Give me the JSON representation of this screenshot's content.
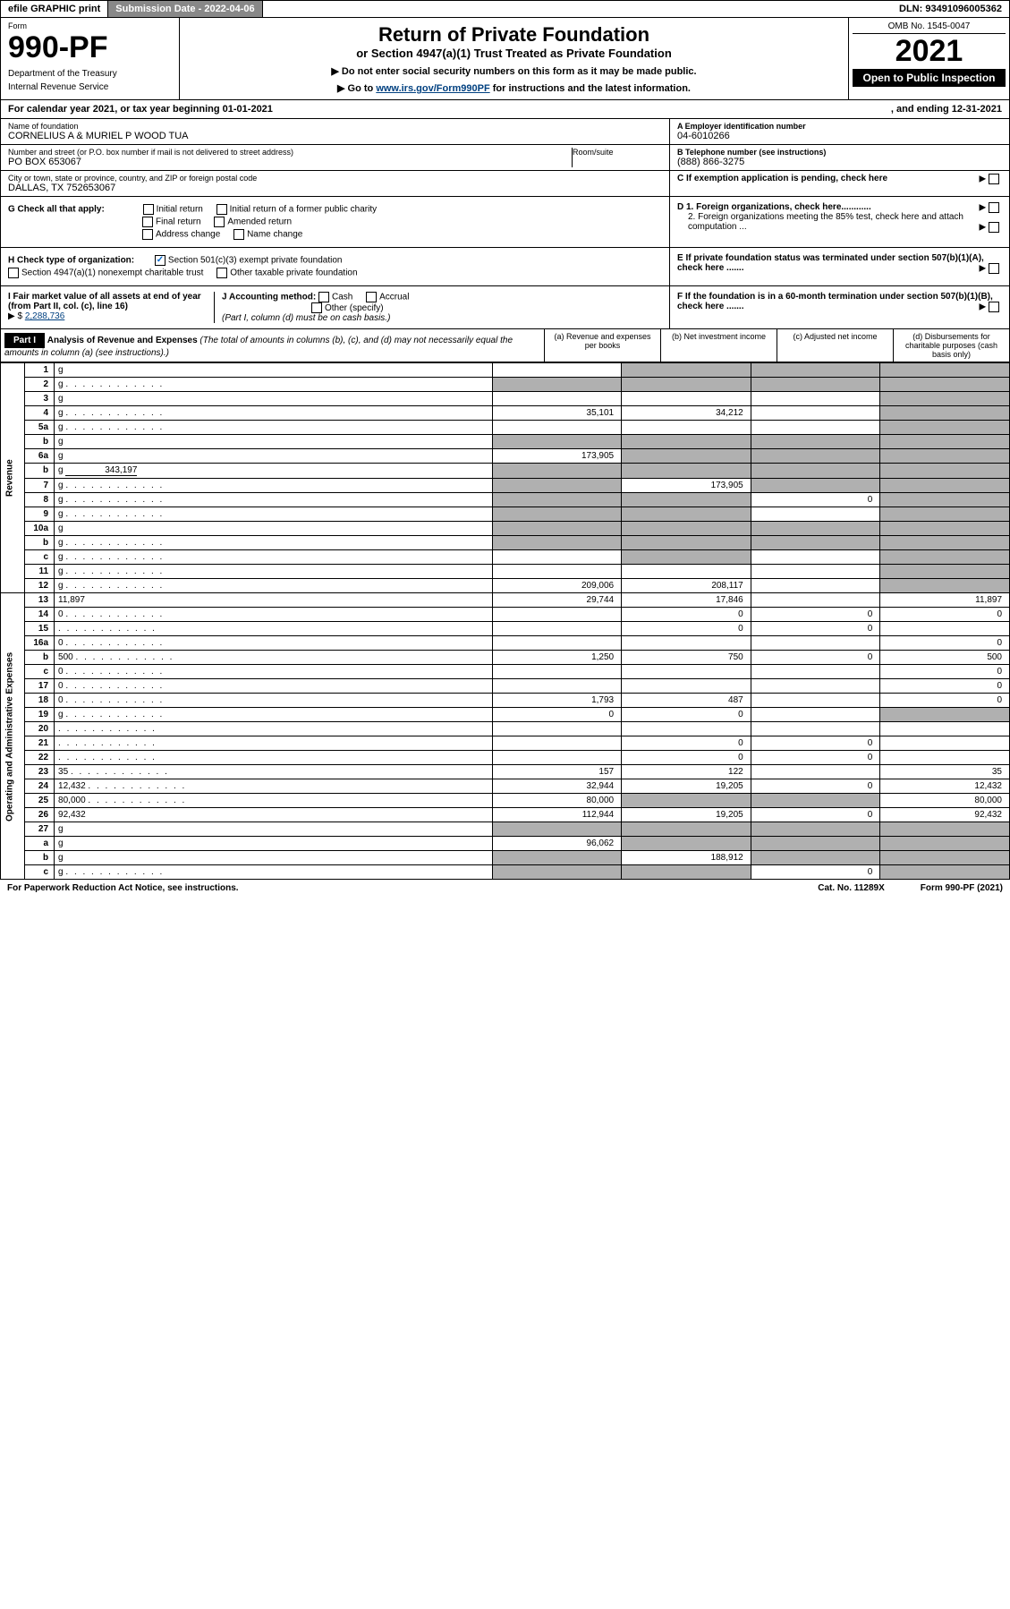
{
  "topbar": {
    "efile": "efile GRAPHIC print",
    "submission_label": "Submission Date - ",
    "submission_date": "2022-04-06",
    "dln_label": "DLN: ",
    "dln": "93491096005362"
  },
  "header": {
    "form_label": "Form",
    "form_number": "990-PF",
    "dept1": "Department of the Treasury",
    "dept2": "Internal Revenue Service",
    "title": "Return of Private Foundation",
    "subtitle": "or Section 4947(a)(1) Trust Treated as Private Foundation",
    "note1": "▶ Do not enter social security numbers on this form as it may be made public.",
    "note2_pre": "▶ Go to ",
    "note2_link": "www.irs.gov/Form990PF",
    "note2_post": " for instructions and the latest information.",
    "omb": "OMB No. 1545-0047",
    "year": "2021",
    "open": "Open to Public Inspection"
  },
  "calendar": {
    "text": "For calendar year 2021, or tax year beginning 01-01-2021",
    "ending": ", and ending 12-31-2021"
  },
  "info": {
    "name_lbl": "Name of foundation",
    "name": "CORNELIUS A & MURIEL P WOOD TUA",
    "addr_lbl": "Number and street (or P.O. box number if mail is not delivered to street address)",
    "addr": "PO BOX 653067",
    "room_lbl": "Room/suite",
    "city_lbl": "City or town, state or province, country, and ZIP or foreign postal code",
    "city": "DALLAS, TX  752653067",
    "ein_lbl": "A Employer identification number",
    "ein": "04-6010266",
    "phone_lbl": "B Telephone number (see instructions)",
    "phone": "(888) 866-3275",
    "c_lbl": "C If exemption application is pending, check here"
  },
  "checks": {
    "g_label": "G Check all that apply:",
    "g_items": [
      "Initial return",
      "Initial return of a former public charity",
      "Final return",
      "Amended return",
      "Address change",
      "Name change"
    ],
    "h_label": "H Check type of organization:",
    "h_items": [
      "Section 501(c)(3) exempt private foundation",
      "Section 4947(a)(1) nonexempt charitable trust",
      "Other taxable private foundation"
    ],
    "h_checked": 0,
    "i_label": "I Fair market value of all assets at end of year (from Part II, col. (c), line 16)",
    "i_value": "2,288,736",
    "j_label": "J Accounting method:",
    "j_items": [
      "Cash",
      "Accrual",
      "Other (specify)"
    ],
    "j_note": "(Part I, column (d) must be on cash basis.)",
    "d1": "D 1. Foreign organizations, check here............",
    "d2": "2. Foreign organizations meeting the 85% test, check here and attach computation ...",
    "e": "E If private foundation status was terminated under section 507(b)(1)(A), check here .......",
    "f": "F If the foundation is in a 60-month termination under section 507(b)(1)(B), check here ......."
  },
  "part1": {
    "label": "Part I",
    "title": "Analysis of Revenue and Expenses",
    "note": " (The total of amounts in columns (b), (c), and (d) may not necessarily equal the amounts in column (a) (see instructions).)",
    "col_a": "(a) Revenue and expenses per books",
    "col_b": "(b) Net investment income",
    "col_c": "(c) Adjusted net income",
    "col_d": "(d) Disbursements for charitable purposes (cash basis only)"
  },
  "side_labels": {
    "revenue": "Revenue",
    "expenses": "Operating and Administrative Expenses"
  },
  "rows": [
    {
      "n": "1",
      "d": "g",
      "a": "",
      "b": "g",
      "c": "g"
    },
    {
      "n": "2",
      "d": "g",
      "dots": true,
      "a": "g",
      "b": "g",
      "c": "g"
    },
    {
      "n": "3",
      "d": "g",
      "a": "",
      "b": "",
      "c": ""
    },
    {
      "n": "4",
      "d": "g",
      "dots": true,
      "a": "35,101",
      "b": "34,212",
      "c": ""
    },
    {
      "n": "5a",
      "d": "g",
      "dots": true,
      "a": "",
      "b": "",
      "c": ""
    },
    {
      "n": "b",
      "d": "g",
      "underline": true,
      "a": "g",
      "b": "g",
      "c": "g"
    },
    {
      "n": "6a",
      "d": "g",
      "a": "173,905",
      "b": "g",
      "c": "g"
    },
    {
      "n": "b",
      "d": "g",
      "inline": "343,197",
      "a": "g",
      "b": "g",
      "c": "g"
    },
    {
      "n": "7",
      "d": "g",
      "dots": true,
      "a": "g",
      "b": "173,905",
      "c": "g"
    },
    {
      "n": "8",
      "d": "g",
      "dots": true,
      "a": "g",
      "b": "g",
      "c": "0"
    },
    {
      "n": "9",
      "d": "g",
      "dots": true,
      "a": "g",
      "b": "g",
      "c": ""
    },
    {
      "n": "10a",
      "d": "g",
      "underline": true,
      "a": "g",
      "b": "g",
      "c": "g"
    },
    {
      "n": "b",
      "d": "g",
      "dots": true,
      "underline": true,
      "a": "g",
      "b": "g",
      "c": "g"
    },
    {
      "n": "c",
      "d": "g",
      "dots": true,
      "a": "",
      "b": "g",
      "c": ""
    },
    {
      "n": "11",
      "d": "g",
      "dots": true,
      "a": "",
      "b": "",
      "c": ""
    },
    {
      "n": "12",
      "d": "g",
      "dots": true,
      "a": "209,006",
      "b": "208,117",
      "c": "",
      "bold": true
    },
    {
      "n": "13",
      "d": "11,897",
      "a": "29,744",
      "b": "17,846",
      "c": ""
    },
    {
      "n": "14",
      "d": "0",
      "dots": true,
      "a": "",
      "b": "0",
      "c": "0"
    },
    {
      "n": "15",
      "d": "",
      "dots": true,
      "a": "",
      "b": "0",
      "c": "0"
    },
    {
      "n": "16a",
      "d": "0",
      "dots": true,
      "a": "",
      "b": "",
      "c": ""
    },
    {
      "n": "b",
      "d": "500",
      "dots": true,
      "a": "1,250",
      "b": "750",
      "c": "0"
    },
    {
      "n": "c",
      "d": "0",
      "dots": true,
      "a": "",
      "b": "",
      "c": ""
    },
    {
      "n": "17",
      "d": "0",
      "dots": true,
      "a": "",
      "b": "",
      "c": ""
    },
    {
      "n": "18",
      "d": "0",
      "dots": true,
      "a": "1,793",
      "b": "487",
      "c": ""
    },
    {
      "n": "19",
      "d": "g",
      "dots": true,
      "a": "0",
      "b": "0",
      "c": ""
    },
    {
      "n": "20",
      "d": "",
      "dots": true,
      "a": "",
      "b": "",
      "c": ""
    },
    {
      "n": "21",
      "d": "",
      "dots": true,
      "a": "",
      "b": "0",
      "c": "0"
    },
    {
      "n": "22",
      "d": "",
      "dots": true,
      "a": "",
      "b": "0",
      "c": "0"
    },
    {
      "n": "23",
      "d": "35",
      "dots": true,
      "a": "157",
      "b": "122",
      "c": ""
    },
    {
      "n": "24",
      "d": "12,432",
      "dots": true,
      "a": "32,944",
      "b": "19,205",
      "c": "0"
    },
    {
      "n": "25",
      "d": "80,000",
      "dots": true,
      "a": "80,000",
      "b": "g",
      "c": "g"
    },
    {
      "n": "26",
      "d": "92,432",
      "a": "112,944",
      "b": "19,205",
      "c": "0"
    },
    {
      "n": "27",
      "d": "g",
      "a": "g",
      "b": "g",
      "c": "g"
    },
    {
      "n": "a",
      "d": "g",
      "a": "96,062",
      "b": "g",
      "c": "g"
    },
    {
      "n": "b",
      "d": "g",
      "a": "g",
      "b": "188,912",
      "c": "g"
    },
    {
      "n": "c",
      "d": "g",
      "dots": true,
      "a": "g",
      "b": "g",
      "c": "0"
    }
  ],
  "footer": {
    "left": "For Paperwork Reduction Act Notice, see instructions.",
    "center": "Cat. No. 11289X",
    "right": "Form 990-PF (2021)"
  },
  "colors": {
    "gray_bg": "#b0b0b0",
    "link": "#004080",
    "check": "#0066cc"
  }
}
